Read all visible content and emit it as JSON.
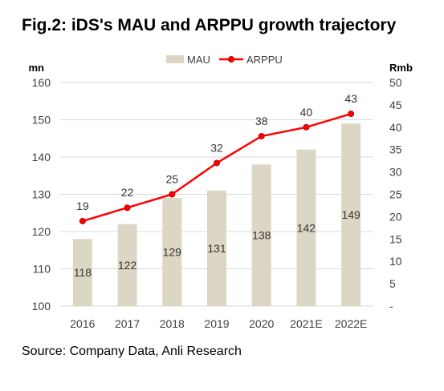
{
  "figure": {
    "title": "Fig.2: iDS's MAU and ARPPU growth trajectory",
    "source": "Source: Company Data, Anli Research"
  },
  "colors": {
    "bar": "#dcd6c4",
    "line": "#ff0000",
    "marker_fill": "#ff0000",
    "marker_edge": "#c00000",
    "grid": "#d9d9d9",
    "axis_text": "#404040"
  },
  "chart_data": {
    "type": "bar",
    "categories": [
      "2016",
      "2017",
      "2018",
      "2019",
      "2020",
      "2021E",
      "2022E"
    ],
    "series": [
      {
        "name": "MAU",
        "type": "bar",
        "axis": "left",
        "values": [
          118,
          122,
          129,
          131,
          138,
          142,
          149
        ],
        "labels": [
          "118",
          "122",
          "129",
          "131",
          "138",
          "142",
          "149"
        ]
      },
      {
        "name": "ARPPU",
        "type": "line",
        "axis": "right",
        "values": [
          19,
          22,
          25,
          32,
          38,
          40,
          43
        ],
        "labels": [
          "19",
          "22",
          "25",
          "32",
          "38",
          "40",
          "43"
        ]
      }
    ],
    "y_left": {
      "unit": "mn",
      "min": 100,
      "max": 160,
      "step": 10,
      "ticks": [
        "100",
        "110",
        "120",
        "130",
        "140",
        "150",
        "160"
      ]
    },
    "y_right": {
      "unit": "Rmb",
      "min": 0,
      "max": 50,
      "step": 5,
      "ticks": [
        "-",
        "5",
        "10",
        "15",
        "20",
        "25",
        "30",
        "35",
        "40",
        "45",
        "50"
      ]
    },
    "legend": {
      "placement": "top-center",
      "entries": [
        "MAU",
        "ARPPU"
      ]
    },
    "grid": true
  }
}
